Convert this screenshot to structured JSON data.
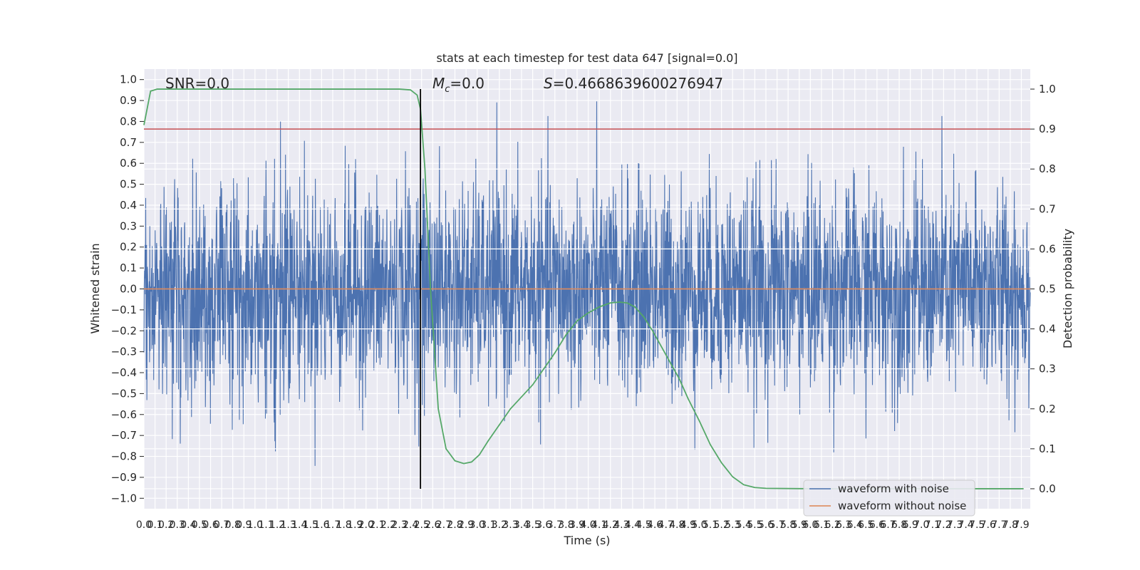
{
  "chart_data": {
    "type": "line",
    "title": "stats at each timestep for test data 647 [signal=0.0]",
    "xlabel": "Time (s)",
    "ylabel": "Whitened strain",
    "ylabel_right": "Detection probability",
    "xlim": [
      0.0,
      7.98
    ],
    "ylim": [
      -1.05,
      1.05
    ],
    "ylim_right": [
      -0.05,
      1.05
    ],
    "x_ticks": [
      "0.0",
      "0.1",
      "0.2",
      "0.3",
      "0.4",
      "0.5",
      "0.6",
      "0.7",
      "0.8",
      "0.9",
      "1.0",
      "1.1",
      "1.2",
      "1.3",
      "1.4",
      "1.5",
      "1.6",
      "1.7",
      "1.8",
      "1.9",
      "2.0",
      "2.1",
      "2.2",
      "2.3",
      "2.4",
      "2.5",
      "2.6",
      "2.7",
      "2.8",
      "2.9",
      "3.0",
      "3.1",
      "3.2",
      "3.3",
      "3.4",
      "3.5",
      "3.6",
      "3.7",
      "3.8",
      "3.9",
      "4.0",
      "4.1",
      "4.2",
      "4.3",
      "4.4",
      "4.5",
      "4.6",
      "4.7",
      "4.8",
      "4.9",
      "5.0",
      "5.1",
      "5.2",
      "5.3",
      "5.4",
      "5.5",
      "5.6",
      "5.7",
      "5.8",
      "5.9",
      "6.0",
      "6.1",
      "6.2",
      "6.3",
      "6.4",
      "6.5",
      "6.6",
      "6.7",
      "6.8",
      "6.9",
      "7.0",
      "7.1",
      "7.2",
      "7.3",
      "7.4",
      "7.5",
      "7.6",
      "7.7",
      "7.8",
      "7.9"
    ],
    "y_ticks": [
      "1.0",
      "0.9",
      "0.8",
      "0.7",
      "0.6",
      "0.5",
      "0.4",
      "0.3",
      "0.2",
      "0.1",
      "0.0",
      "−0.1",
      "−0.2",
      "−0.3",
      "−0.4",
      "−0.5",
      "−0.6",
      "−0.7",
      "−0.8",
      "−0.9",
      "−1.0"
    ],
    "y_ticks_right": [
      "1.0",
      "0.9",
      "0.8",
      "0.7",
      "0.6",
      "0.5",
      "0.4",
      "0.3",
      "0.2",
      "0.1",
      "0.0"
    ],
    "threshold": 0.9,
    "vline_x": 2.49,
    "annotations": {
      "snr": "SNR=0.0",
      "mc_symbol": "M",
      "mc_sub": "c",
      "mc_value": "=0.0",
      "s_symbol": "S",
      "s_value": "=0.4668639600276947"
    },
    "series": [
      {
        "name": "waveform with noise",
        "color": "#4c72b0",
        "noise_amplitude": 0.25,
        "seed": 647
      },
      {
        "name": "waveform without noise",
        "color": "#dd8452",
        "y_const": 0.0
      }
    ],
    "probability": {
      "color": "#55a868",
      "x": [
        0.0,
        0.06,
        0.12,
        0.3,
        1.0,
        2.0,
        2.3,
        2.4,
        2.46,
        2.49,
        2.53,
        2.58,
        2.65,
        2.72,
        2.8,
        2.88,
        2.95,
        3.02,
        3.1,
        3.2,
        3.3,
        3.4,
        3.5,
        3.6,
        3.7,
        3.8,
        3.9,
        4.0,
        4.1,
        4.2,
        4.28,
        4.35,
        4.42,
        4.5,
        4.58,
        4.66,
        4.74,
        4.82,
        4.9,
        5.0,
        5.1,
        5.2,
        5.3,
        5.4,
        5.5,
        5.6,
        6.0,
        7.0,
        7.92
      ],
      "y": [
        0.91,
        0.995,
        1.0,
        1.0,
        1.0,
        1.0,
        1.0,
        0.998,
        0.985,
        0.95,
        0.8,
        0.5,
        0.2,
        0.1,
        0.07,
        0.063,
        0.067,
        0.085,
        0.12,
        0.16,
        0.2,
        0.23,
        0.26,
        0.3,
        0.34,
        0.385,
        0.42,
        0.44,
        0.455,
        0.465,
        0.467,
        0.465,
        0.455,
        0.43,
        0.395,
        0.355,
        0.315,
        0.275,
        0.225,
        0.17,
        0.11,
        0.065,
        0.03,
        0.01,
        0.003,
        0.001,
        0.0,
        0.0,
        0.0
      ]
    },
    "grid": true,
    "legend_position": "lower-right"
  }
}
